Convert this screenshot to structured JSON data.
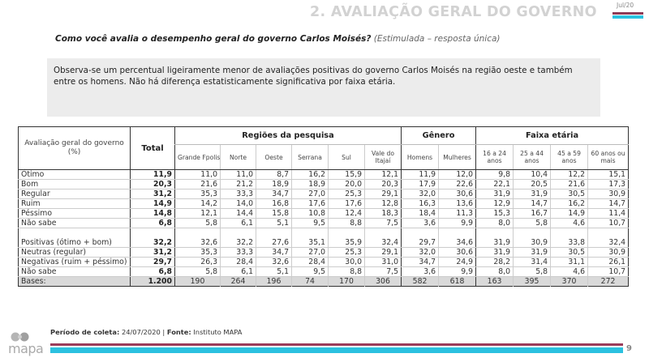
{
  "header": {
    "section_title": "2. AVALIAÇÃO GERAL DO GOVERNO",
    "date_tag": "Jul/20"
  },
  "question": {
    "text": "Como você avalia o desempenho geral do governo Carlos Moisés?",
    "note": "(Estimulada – resposta única)"
  },
  "summary": {
    "text": "Observa-se um percentual ligeiramente menor de avaliações positivas do governo Carlos Moisés na região oeste e também entre os homens. Não há diferença estatisticamente significativa por faixa etária."
  },
  "table": {
    "row_header_label": "Avaliação geral do governo (%)",
    "total_label": "Total",
    "groups": [
      {
        "label": "Regiões da pesquisa",
        "columns": [
          "Grande Fpolis",
          "Norte",
          "Oeste",
          "Serrana",
          "Sul",
          "Vale do Itajaí"
        ]
      },
      {
        "label": "Gênero",
        "columns": [
          "Homens",
          "Mulheres"
        ]
      },
      {
        "label": "Faixa etária",
        "columns": [
          "16 a 24 anos",
          "25 a 44 anos",
          "45 a 59 anos",
          "60 anos ou mais"
        ]
      }
    ],
    "rows": [
      {
        "label": "Ótimo",
        "total": "11,9",
        "values": [
          "11,0",
          "11,0",
          "8,7",
          "16,2",
          "15,9",
          "12,1",
          "11,9",
          "12,0",
          "9,8",
          "10,4",
          "12,2",
          "15,1"
        ]
      },
      {
        "label": "Bom",
        "total": "20,3",
        "values": [
          "21,6",
          "21,2",
          "18,9",
          "18,9",
          "20,0",
          "20,3",
          "17,9",
          "22,6",
          "22,1",
          "20,5",
          "21,6",
          "17,3"
        ]
      },
      {
        "label": "Regular",
        "total": "31,2",
        "values": [
          "35,3",
          "33,3",
          "34,7",
          "27,0",
          "25,3",
          "29,1",
          "32,0",
          "30,6",
          "31,9",
          "31,9",
          "30,5",
          "30,9"
        ]
      },
      {
        "label": "Ruim",
        "total": "14,9",
        "values": [
          "14,2",
          "14,0",
          "16,8",
          "17,6",
          "17,6",
          "12,8",
          "16,3",
          "13,6",
          "12,9",
          "14,7",
          "16,2",
          "14,7"
        ]
      },
      {
        "label": "Péssimo",
        "total": "14,8",
        "values": [
          "12,1",
          "14,4",
          "15,8",
          "10,8",
          "12,4",
          "18,3",
          "18,4",
          "11,3",
          "15,3",
          "16,7",
          "14,9",
          "11,4"
        ]
      },
      {
        "label": "Não sabe",
        "total": "6,8",
        "values": [
          "5,8",
          "6,1",
          "5,1",
          "9,5",
          "8,8",
          "7,5",
          "3,6",
          "9,9",
          "8,0",
          "5,8",
          "4,6",
          "10,7"
        ]
      }
    ],
    "summary_rows": [
      {
        "label": "Positivas (ótimo + bom)",
        "total": "32,2",
        "values": [
          "32,6",
          "32,2",
          "27,6",
          "35,1",
          "35,9",
          "32,4",
          "29,7",
          "34,6",
          "31,9",
          "30,9",
          "33,8",
          "32,4"
        ]
      },
      {
        "label": "Neutras (regular)",
        "total": "31,2",
        "values": [
          "35,3",
          "33,3",
          "34,7",
          "27,0",
          "25,3",
          "29,1",
          "32,0",
          "30,6",
          "31,9",
          "31,9",
          "30,5",
          "30,9"
        ]
      },
      {
        "label": "Negativas (ruim + péssimo)",
        "total": "29,7",
        "values": [
          "26,3",
          "28,4",
          "32,6",
          "28,4",
          "30,0",
          "31,0",
          "34,7",
          "24,9",
          "28,2",
          "31,4",
          "31,1",
          "26,1"
        ]
      },
      {
        "label": "Não sabe",
        "total": "6,8",
        "values": [
          "5,8",
          "6,1",
          "5,1",
          "9,5",
          "8,8",
          "7,5",
          "3,6",
          "9,9",
          "8,0",
          "5,8",
          "4,6",
          "10,7"
        ]
      }
    ],
    "bases": {
      "label": "Bases:",
      "total": "1.200",
      "values": [
        "190",
        "264",
        "196",
        "74",
        "170",
        "306",
        "582",
        "618",
        "163",
        "395",
        "370",
        "272"
      ]
    }
  },
  "footer": {
    "period_label": "Período de coleta:",
    "period_value": "24/07/2020",
    "separator": "|",
    "source_label": "Fonte:",
    "source_value": "Instituto MAPA",
    "page_number": "9",
    "logo_text": "mapa"
  },
  "colors": {
    "accent_red": "#9c3c5a",
    "accent_blue": "#2bc1e0",
    "summary_bg": "#ececec",
    "bases_bg": "#d9d9d9",
    "title_gray": "#d2d2d2"
  }
}
